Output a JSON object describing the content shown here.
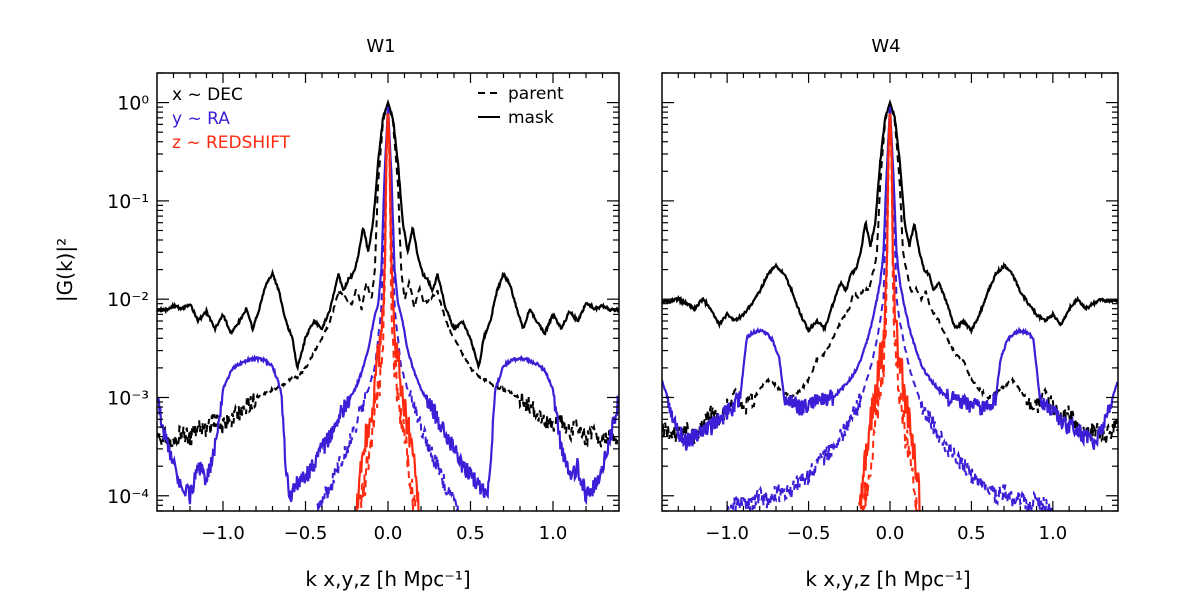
{
  "figure": {
    "ylabel": "|G(k)|²"
  },
  "legend": {
    "axes": [
      {
        "label": "x ~ DEC",
        "color": "#000000"
      },
      {
        "label": "y ~ RA",
        "color": "#3a1fd6"
      },
      {
        "label": "z ~ REDSHIFT",
        "color": "#ff2a10"
      }
    ],
    "styles": [
      {
        "label": "parent",
        "dash": "dashed"
      },
      {
        "label": "mask",
        "dash": "solid"
      }
    ]
  },
  "chart_data": [
    {
      "type": "line",
      "title": "W1",
      "xlabel": "k x,y,z [h Mpc⁻¹]",
      "ylabel": "|G(k)|²",
      "xlim": [
        -1.4,
        1.4
      ],
      "ylim": [
        7e-05,
        2
      ],
      "yscale": "log",
      "xticks": [
        -1.0,
        -0.5,
        0.0,
        0.5,
        1.0
      ],
      "xtick_labels": [
        "−1.0",
        "−0.5",
        "0.0",
        "0.5",
        "1.0"
      ],
      "ytick_labels": [
        "10⁻⁴",
        "10⁻³",
        "10⁻²",
        "10⁻¹",
        "10⁰"
      ],
      "series": [
        {
          "name": "x ~ DEC mask",
          "color": "#000000",
          "dash": "solid",
          "k": [
            0,
            0.03,
            0.06,
            0.09,
            0.12,
            0.15,
            0.18,
            0.21,
            0.24,
            0.27,
            0.3,
            0.35,
            0.4,
            0.45,
            0.5,
            0.55,
            0.58,
            0.62,
            0.66,
            0.7,
            0.74,
            0.78,
            0.82,
            0.86,
            0.9,
            0.95,
            1.0,
            1.05,
            1.1,
            1.15,
            1.2,
            1.25,
            1.3,
            1.35,
            1.4
          ],
          "val": [
            1.0,
            0.7,
            0.25,
            0.06,
            0.03,
            0.055,
            0.028,
            0.018,
            0.016,
            0.012,
            0.018,
            0.008,
            0.005,
            0.006,
            0.004,
            0.002,
            0.004,
            0.006,
            0.012,
            0.018,
            0.014,
            0.008,
            0.005,
            0.008,
            0.006,
            0.0045,
            0.007,
            0.005,
            0.0075,
            0.006,
            0.009,
            0.008,
            0.0085,
            0.0078,
            0.0078
          ]
        },
        {
          "name": "x ~ DEC parent",
          "color": "#000000",
          "dash": "dashed",
          "k": [
            0,
            0.03,
            0.06,
            0.08,
            0.1,
            0.13,
            0.16,
            0.19,
            0.22,
            0.25,
            0.3,
            0.35,
            0.4,
            0.45,
            0.5,
            0.55,
            0.6,
            0.65,
            0.7,
            0.75,
            0.8,
            0.85,
            0.9,
            0.95,
            1.0,
            1.05,
            1.1,
            1.15,
            1.2,
            1.25,
            1.3,
            1.35,
            1.4
          ],
          "val": [
            1.0,
            0.65,
            0.15,
            0.02,
            0.01,
            0.015,
            0.008,
            0.013,
            0.009,
            0.01,
            0.012,
            0.006,
            0.004,
            0.0028,
            0.002,
            0.0016,
            0.0015,
            0.0013,
            0.0012,
            0.0011,
            0.001,
            0.00085,
            0.0007,
            0.0006,
            0.0005,
            0.0006,
            0.00045,
            0.0005,
            0.00038,
            0.00045,
            0.00035,
            0.0004,
            0.00035
          ]
        },
        {
          "name": "y ~ RA mask",
          "color": "#3a1fd6",
          "dash": "solid",
          "k": [
            0,
            0.02,
            0.04,
            0.06,
            0.08,
            0.12,
            0.16,
            0.2,
            0.25,
            0.3,
            0.35,
            0.4,
            0.45,
            0.5,
            0.55,
            0.6,
            0.62,
            0.65,
            0.7,
            0.75,
            0.8,
            0.85,
            0.9,
            0.95,
            1.0,
            1.05,
            1.1,
            1.15,
            1.2,
            1.25,
            1.3,
            1.35,
            1.4
          ],
          "val": [
            0.9,
            0.2,
            0.02,
            0.009,
            0.007,
            0.003,
            0.0018,
            0.0012,
            0.0009,
            0.0006,
            0.0004,
            0.0003,
            0.0002,
            0.00016,
            0.00013,
            0.0001,
            0.0002,
            0.0012,
            0.0021,
            0.0024,
            0.0025,
            0.0024,
            0.0022,
            0.0019,
            0.0012,
            0.0003,
            0.00015,
            0.0002,
            0.0001,
            0.00012,
            0.0002,
            0.0004,
            0.001
          ]
        },
        {
          "name": "y ~ RA parent",
          "color": "#3a1fd6",
          "dash": "dashed",
          "k": [
            0,
            0.02,
            0.04,
            0.06,
            0.08,
            0.12,
            0.16,
            0.2,
            0.25,
            0.3,
            0.35,
            0.4,
            0.43
          ],
          "val": [
            0.9,
            0.15,
            0.008,
            0.004,
            0.002,
            0.0012,
            0.0008,
            0.0005,
            0.0003,
            0.0002,
            0.00012,
            9e-05,
            7e-05
          ]
        },
        {
          "name": "z ~ REDSHIFT mask",
          "color": "#ff2a10",
          "dash": "solid",
          "k": [
            0,
            0.01,
            0.02,
            0.03,
            0.04,
            0.05,
            0.07,
            0.09,
            0.11,
            0.13,
            0.15,
            0.17,
            0.19
          ],
          "val": [
            0.95,
            0.3,
            0.02,
            0.008,
            0.005,
            0.003,
            0.002,
            0.001,
            0.0007,
            0.0004,
            0.00025,
            0.00014,
            7e-05
          ]
        },
        {
          "name": "z ~ REDSHIFT parent",
          "color": "#ff2a10",
          "dash": "dashed",
          "k": [
            0,
            0.01,
            0.02,
            0.03,
            0.04,
            0.05,
            0.07,
            0.09,
            0.11,
            0.13,
            0.15,
            0.17
          ],
          "val": [
            0.95,
            0.2,
            0.01,
            0.004,
            0.002,
            0.0015,
            0.0009,
            0.0005,
            0.0003,
            0.00018,
            0.0001,
            7e-05
          ]
        }
      ]
    },
    {
      "type": "line",
      "title": "W4",
      "xlabel": "k x,y,z [h Mpc⁻¹]",
      "xlim": [
        -1.4,
        1.4
      ],
      "ylim": [
        7e-05,
        2
      ],
      "yscale": "log",
      "xticks": [
        -1.0,
        -0.5,
        0.0,
        0.5,
        1.0
      ],
      "xtick_labels": [
        "−1.0",
        "−0.5",
        "0.0",
        "0.5",
        "1.0"
      ],
      "series": [
        {
          "name": "x ~ DEC mask",
          "color": "#000000",
          "dash": "solid",
          "k": [
            0,
            0.03,
            0.06,
            0.09,
            0.12,
            0.15,
            0.18,
            0.21,
            0.24,
            0.27,
            0.3,
            0.35,
            0.4,
            0.45,
            0.5,
            0.55,
            0.6,
            0.65,
            0.7,
            0.75,
            0.8,
            0.85,
            0.9,
            0.95,
            1.0,
            1.05,
            1.1,
            1.15,
            1.2,
            1.25,
            1.3,
            1.35,
            1.4
          ],
          "val": [
            1.0,
            0.7,
            0.25,
            0.06,
            0.035,
            0.06,
            0.03,
            0.02,
            0.018,
            0.012,
            0.015,
            0.009,
            0.005,
            0.006,
            0.0048,
            0.007,
            0.012,
            0.018,
            0.022,
            0.018,
            0.012,
            0.009,
            0.007,
            0.006,
            0.007,
            0.0055,
            0.008,
            0.01,
            0.008,
            0.009,
            0.01,
            0.0095,
            0.0095
          ]
        },
        {
          "name": "x ~ DEC parent",
          "color": "#000000",
          "dash": "dashed",
          "k": [
            0,
            0.03,
            0.06,
            0.08,
            0.1,
            0.13,
            0.16,
            0.19,
            0.22,
            0.25,
            0.3,
            0.35,
            0.4,
            0.45,
            0.5,
            0.55,
            0.6,
            0.65,
            0.7,
            0.75,
            0.8,
            0.85,
            0.9,
            0.95,
            1.0,
            1.05,
            1.1,
            1.15,
            1.2,
            1.25,
            1.3,
            1.35,
            1.4
          ],
          "val": [
            1.0,
            0.65,
            0.15,
            0.03,
            0.02,
            0.012,
            0.013,
            0.01,
            0.012,
            0.008,
            0.006,
            0.004,
            0.0028,
            0.0024,
            0.0015,
            0.0012,
            0.001,
            0.0011,
            0.0013,
            0.0015,
            0.0012,
            0.0009,
            0.0008,
            0.0012,
            0.0008,
            0.0006,
            0.0007,
            0.0005,
            0.0004,
            0.0005,
            0.0004,
            0.00045,
            0.0005
          ]
        },
        {
          "name": "y ~ RA mask",
          "color": "#3a1fd6",
          "dash": "solid",
          "k": [
            0,
            0.02,
            0.04,
            0.06,
            0.08,
            0.12,
            0.16,
            0.2,
            0.25,
            0.3,
            0.35,
            0.4,
            0.45,
            0.5,
            0.55,
            0.6,
            0.65,
            0.68,
            0.72,
            0.76,
            0.8,
            0.85,
            0.88,
            0.92,
            0.96,
            1.0,
            1.05,
            1.1,
            1.15,
            1.2,
            1.25,
            1.3,
            1.35,
            1.4
          ],
          "val": [
            0.9,
            0.2,
            0.03,
            0.015,
            0.01,
            0.005,
            0.003,
            0.002,
            0.0015,
            0.0012,
            0.001,
            0.00095,
            0.0009,
            0.00085,
            0.0008,
            0.00085,
            0.001,
            0.0025,
            0.0038,
            0.0045,
            0.0048,
            0.0045,
            0.004,
            0.001,
            0.0008,
            0.0007,
            0.0006,
            0.0005,
            0.00045,
            0.0004,
            0.00035,
            0.00045,
            0.0008,
            0.0015
          ]
        },
        {
          "name": "y ~ RA parent",
          "color": "#3a1fd6",
          "dash": "dashed",
          "k": [
            0,
            0.02,
            0.04,
            0.06,
            0.08,
            0.12,
            0.16,
            0.2,
            0.25,
            0.3,
            0.35,
            0.4,
            0.45,
            0.5,
            0.55,
            0.6,
            0.65,
            0.7,
            0.75,
            0.8,
            0.85,
            0.9,
            0.95,
            1.0
          ],
          "val": [
            0.9,
            0.15,
            0.01,
            0.006,
            0.004,
            0.002,
            0.0012,
            0.0008,
            0.0006,
            0.0004,
            0.0003,
            0.00025,
            0.0002,
            0.00016,
            0.00014,
            0.00012,
            0.0001,
            0.00011,
            9e-05,
            0.0001,
            8e-05,
            9e-05,
            8e-05,
            7e-05
          ]
        },
        {
          "name": "z ~ REDSHIFT mask",
          "color": "#ff2a10",
          "dash": "solid",
          "k": [
            0,
            0.01,
            0.02,
            0.03,
            0.04,
            0.05,
            0.07,
            0.09,
            0.11,
            0.13,
            0.15,
            0.17,
            0.19
          ],
          "val": [
            0.95,
            0.3,
            0.02,
            0.008,
            0.005,
            0.003,
            0.002,
            0.001,
            0.0007,
            0.0004,
            0.00025,
            0.00014,
            7e-05
          ]
        },
        {
          "name": "z ~ REDSHIFT parent",
          "color": "#ff2a10",
          "dash": "dashed",
          "k": [
            0,
            0.01,
            0.02,
            0.03,
            0.04,
            0.05,
            0.07,
            0.09,
            0.11,
            0.13,
            0.15,
            0.17
          ],
          "val": [
            0.95,
            0.2,
            0.01,
            0.004,
            0.002,
            0.0015,
            0.0009,
            0.0005,
            0.0003,
            0.00018,
            0.0001,
            7e-05
          ]
        }
      ]
    }
  ]
}
